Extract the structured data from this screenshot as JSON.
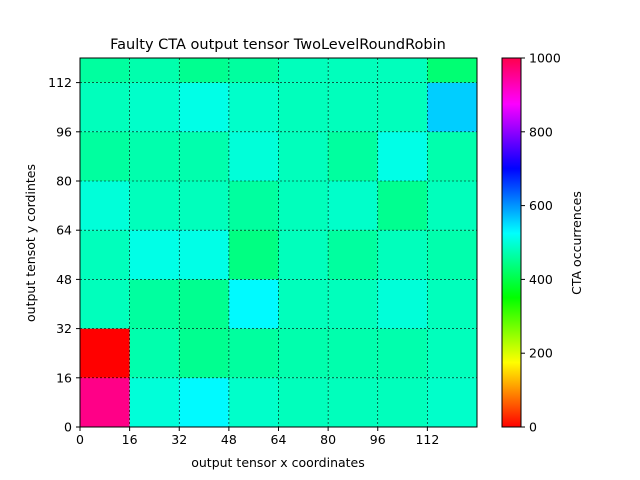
{
  "chart_data": {
    "type": "heatmap",
    "title": "Faulty CTA output tensor TwoLevelRoundRobin",
    "xlabel": "output tensor x coordinates",
    "ylabel": "output tensot y cordintes",
    "colorbar_label": "CTA occurrences",
    "xlim": [
      0,
      128
    ],
    "ylim": [
      0,
      120
    ],
    "cell_size": 16,
    "x_ticks": [
      0,
      16,
      32,
      48,
      64,
      80,
      96,
      112
    ],
    "y_ticks": [
      0,
      16,
      32,
      48,
      64,
      80,
      96,
      112
    ],
    "colorbar_range": [
      0,
      1000
    ],
    "colorbar_ticks": [
      0,
      200,
      400,
      600,
      800,
      1000
    ],
    "colormap": "hsv",
    "grid": true,
    "values": [
      [
        960,
        500,
        530,
        490,
        480,
        480,
        480,
        490
      ],
      [
        0,
        470,
        450,
        460,
        470,
        470,
        470,
        480
      ],
      [
        480,
        460,
        450,
        530,
        480,
        480,
        500,
        480
      ],
      [
        480,
        510,
        510,
        440,
        480,
        460,
        480,
        470
      ],
      [
        500,
        480,
        480,
        460,
        480,
        490,
        450,
        480
      ],
      [
        460,
        470,
        470,
        500,
        480,
        460,
        510,
        470
      ],
      [
        480,
        490,
        510,
        490,
        480,
        480,
        480,
        560
      ],
      [
        460,
        470,
        450,
        460,
        480,
        480,
        480,
        430
      ]
    ]
  }
}
